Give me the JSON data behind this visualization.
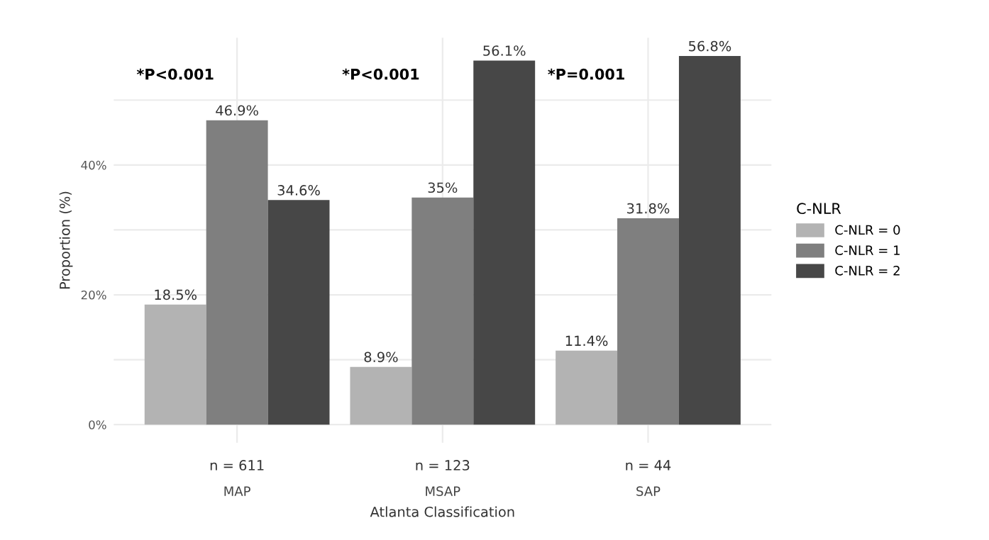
{
  "chart_data": {
    "type": "bar",
    "xlabel": "Atlanta Classification",
    "ylabel": "Proportion (%)",
    "legend_title": "C-NLR",
    "categories": [
      "MAP",
      "MSAP",
      "SAP"
    ],
    "series": [
      {
        "name": "C-NLR = 0",
        "color": "#b3b3b3",
        "values": [
          18.5,
          8.9,
          11.4
        ],
        "value_labels": [
          "18.5%",
          "8.9%",
          "11.4%"
        ]
      },
      {
        "name": "C-NLR = 1",
        "color": "#7f7f7f",
        "values": [
          46.9,
          35,
          31.8
        ],
        "value_labels": [
          "46.9%",
          "35%",
          "31.8%"
        ]
      },
      {
        "name": "C-NLR = 2",
        "color": "#474747",
        "values": [
          34.6,
          56.1,
          56.8
        ],
        "value_labels": [
          "34.6%",
          "56.1%",
          "56.8%"
        ]
      }
    ],
    "ylim": [
      -2.8,
      59.6
    ],
    "yticks": [
      {
        "value": 0,
        "label": "0%"
      },
      {
        "value": 10,
        "label": null
      },
      {
        "value": 20,
        "label": "20%"
      },
      {
        "value": 30,
        "label": null
      },
      {
        "value": 40,
        "label": "40%"
      },
      {
        "value": 50,
        "label": null
      }
    ],
    "grid": true,
    "legend": "right",
    "annotations": [
      "*P<0.001",
      "*P<0.001",
      "*P=0.001",
      "n = 611",
      "n = 123",
      "n = 44"
    ]
  }
}
